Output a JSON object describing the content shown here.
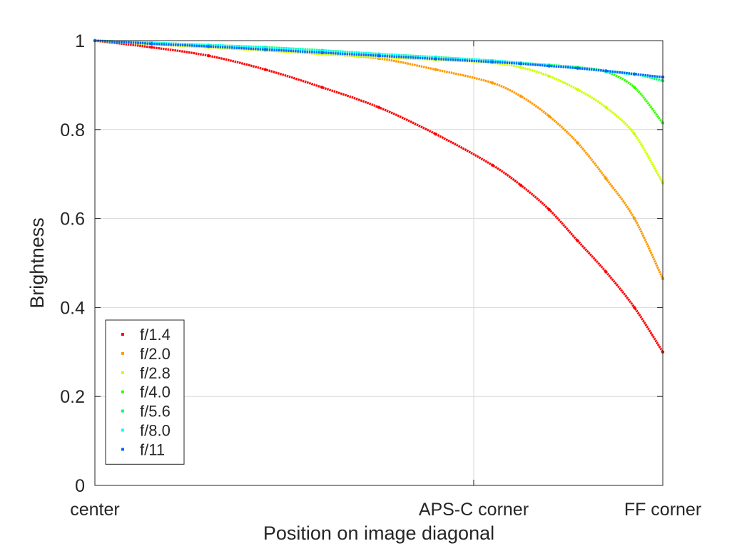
{
  "chart_data": {
    "type": "scatter",
    "title": "",
    "xlabel": "Position on image diagonal",
    "ylabel": "Brightness",
    "xlim": [
      0,
      1
    ],
    "ylim": [
      0,
      1
    ],
    "grid": true,
    "legend_position": "bottom-left",
    "x_ticks": [
      {
        "value": 0,
        "label": "center"
      },
      {
        "value": 0.667,
        "label": "APS-C corner"
      },
      {
        "value": 1,
        "label": "FF corner"
      }
    ],
    "y_ticks": [
      {
        "value": 0,
        "label": "0"
      },
      {
        "value": 0.2,
        "label": "0.2"
      },
      {
        "value": 0.4,
        "label": "0.4"
      },
      {
        "value": 0.6,
        "label": "0.6"
      },
      {
        "value": 0.8,
        "label": "0.8"
      },
      {
        "value": 1,
        "label": "1"
      }
    ],
    "x": [
      0,
      0.1,
      0.2,
      0.3,
      0.4,
      0.5,
      0.6,
      0.7,
      0.75,
      0.8,
      0.85,
      0.9,
      0.95,
      1.0
    ],
    "series": [
      {
        "name": "f/1.4",
        "color": "#ff0000",
        "values": [
          1.0,
          0.985,
          0.966,
          0.935,
          0.895,
          0.85,
          0.79,
          0.72,
          0.675,
          0.62,
          0.55,
          0.48,
          0.4,
          0.3
        ]
      },
      {
        "name": "f/2.0",
        "color": "#ff9900",
        "values": [
          1.0,
          0.992,
          0.985,
          0.978,
          0.97,
          0.96,
          0.935,
          0.905,
          0.875,
          0.83,
          0.77,
          0.69,
          0.6,
          0.465
        ]
      },
      {
        "name": "f/2.8",
        "color": "#ccff00",
        "values": [
          1.0,
          0.992,
          0.985,
          0.978,
          0.97,
          0.963,
          0.957,
          0.95,
          0.94,
          0.92,
          0.89,
          0.85,
          0.79,
          0.68
        ]
      },
      {
        "name": "f/4.0",
        "color": "#33ff00",
        "values": [
          1.0,
          0.995,
          0.99,
          0.985,
          0.978,
          0.97,
          0.962,
          0.955,
          0.95,
          0.945,
          0.94,
          0.93,
          0.895,
          0.815
        ]
      },
      {
        "name": "f/5.6",
        "color": "#00ff66",
        "values": [
          1.0,
          0.995,
          0.99,
          0.985,
          0.978,
          0.97,
          0.963,
          0.955,
          0.95,
          0.945,
          0.94,
          0.932,
          0.925,
          0.91
        ]
      },
      {
        "name": "f/8.0",
        "color": "#00ffff",
        "values": [
          1.0,
          0.995,
          0.99,
          0.984,
          0.977,
          0.97,
          0.962,
          0.955,
          0.95,
          0.944,
          0.938,
          0.931,
          0.924,
          0.918
        ]
      },
      {
        "name": "f/11",
        "color": "#0066ff",
        "values": [
          1.0,
          0.993,
          0.987,
          0.98,
          0.973,
          0.966,
          0.959,
          0.952,
          0.948,
          0.943,
          0.938,
          0.932,
          0.925,
          0.918
        ]
      }
    ]
  }
}
